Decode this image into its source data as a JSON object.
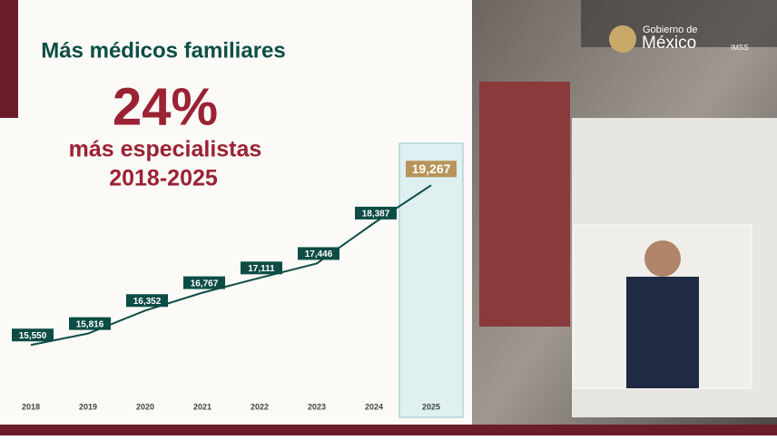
{
  "chart_data": {
    "type": "line",
    "title": "Más médicos familiares",
    "headline": "24%",
    "subtitle": "más especialistas",
    "period": "2018-2025",
    "categories": [
      "2018",
      "2019",
      "2020",
      "2021",
      "2022",
      "2023",
      "2024",
      "2025"
    ],
    "values": [
      15550,
      15816,
      16352,
      16767,
      17111,
      17446,
      18387,
      19267
    ],
    "value_labels": [
      "15,550",
      "15,816",
      "16,352",
      "16,767",
      "17,111",
      "17,446",
      "18,387",
      "19,267"
    ],
    "color": "#0d4d45",
    "highlight_color": "#b8945a",
    "ylim": [
      14500,
      20200
    ]
  },
  "logo": {
    "line1": "Gobierno de",
    "line2": "México",
    "agency": "IMSS"
  }
}
